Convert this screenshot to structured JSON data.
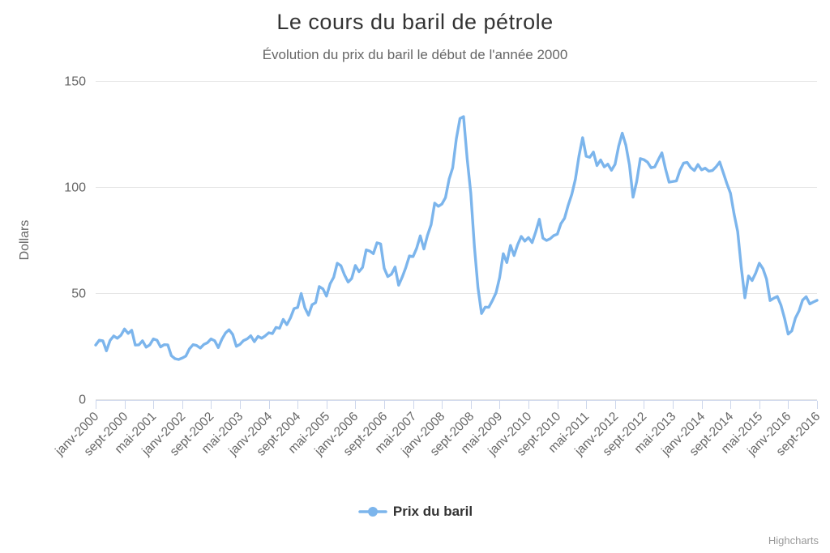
{
  "chart_data": {
    "type": "line",
    "title": "Le cours du baril de pétrole",
    "subtitle": "Évolution du prix du baril le début de l'année 2000",
    "ylabel": "Dollars",
    "ylim": [
      0,
      150
    ],
    "yticks": [
      0,
      50,
      100,
      150
    ],
    "grid": "horizontal",
    "legend_position": "bottom-center",
    "series_name": "Prix du baril",
    "x_start": "janv-2000",
    "x_end": "sept-2016",
    "x_step": "monthly",
    "x_tick_labels": [
      "janv-2000",
      "sept-2000",
      "mai-2001",
      "janv-2002",
      "sept-2002",
      "mai-2003",
      "janv-2004",
      "sept-2004",
      "mai-2005",
      "janv-2006",
      "sept-2006",
      "mai-2007",
      "janv-2008",
      "sept-2008",
      "mai-2009",
      "janv-2010",
      "sept-2010",
      "mai-2011",
      "janv-2012",
      "sept-2012",
      "mai-2013",
      "janv-2014",
      "sept-2014",
      "mai-2015",
      "janv-2016",
      "sept-2016"
    ],
    "x_tick_every_n_months": 8,
    "values": [
      25.5,
      27.8,
      27.5,
      22.8,
      27.7,
      29.8,
      28.7,
      30.1,
      33.1,
      31.0,
      32.5,
      25.5,
      25.6,
      27.5,
      24.5,
      25.6,
      28.4,
      27.8,
      24.6,
      25.7,
      25.6,
      20.5,
      19.1,
      18.7,
      19.4,
      20.3,
      23.7,
      25.7,
      25.3,
      24.1,
      25.8,
      26.6,
      28.4,
      27.5,
      24.3,
      28.3,
      31.2,
      32.7,
      30.5,
      24.9,
      25.8,
      27.6,
      28.4,
      29.9,
      27.1,
      29.6,
      28.7,
      29.8,
      31.3,
      30.9,
      33.8,
      33.4,
      37.6,
      35.1,
      38.3,
      42.7,
      43.2,
      49.8,
      43.1,
      39.6,
      44.5,
      45.5,
      53.1,
      52.0,
      48.6,
      54.4,
      57.5,
      64.1,
      62.9,
      58.5,
      55.2,
      56.9,
      63.0,
      60.1,
      62.1,
      70.4,
      69.8,
      68.6,
      73.7,
      73.2,
      61.7,
      57.8,
      58.9,
      62.3,
      53.7,
      57.6,
      62.1,
      67.5,
      67.2,
      71.1,
      77.0,
      70.8,
      77.2,
      82.3,
      92.4,
      90.9,
      92.0,
      95.0,
      103.7,
      109.1,
      122.8,
      132.3,
      133.2,
      113.2,
      97.2,
      71.9,
      52.5,
      40.4,
      43.4,
      43.3,
      46.5,
      50.2,
      57.3,
      68.6,
      64.4,
      72.5,
      67.7,
      72.8,
      76.7,
      74.5,
      76.2,
      73.8,
      78.8,
      84.8,
      75.9,
      74.8,
      75.6,
      77.1,
      77.8,
      82.7,
      85.3,
      91.4,
      96.5,
      103.7,
      114.6,
      123.3,
      114.5,
      114.0,
      116.5,
      110.1,
      112.8,
      109.5,
      110.8,
      107.9,
      110.7,
      119.3,
      125.4,
      119.8,
      110.3,
      95.2,
      102.6,
      113.4,
      112.9,
      111.7,
      109.1,
      109.5,
      112.9,
      116.1,
      108.5,
      102.3,
      102.6,
      102.9,
      107.9,
      111.3,
      111.6,
      109.1,
      107.8,
      110.6,
      108.1,
      108.9,
      107.5,
      107.8,
      109.5,
      111.8,
      106.8,
      101.6,
      97.1,
      87.4,
      79.0,
      62.3,
      47.8,
      58.1,
      55.9,
      59.5,
      64.1,
      61.5,
      56.6,
      46.5,
      47.6,
      48.4,
      44.3,
      38.0,
      30.7,
      32.2,
      38.2,
      41.6,
      46.7,
      48.3,
      44.9,
      45.8,
      46.6
    ],
    "colors": {
      "line": "#7cb5ec",
      "grid": "#e6e6e6",
      "axis_line": "#ccd6eb",
      "tick": "#ccd6eb",
      "label_text": "#666666",
      "title_text": "#333333",
      "subtitle_text": "#666666",
      "legend_text": "#333333",
      "credits_text": "#999999"
    }
  },
  "credits": {
    "label": "Highcharts"
  }
}
